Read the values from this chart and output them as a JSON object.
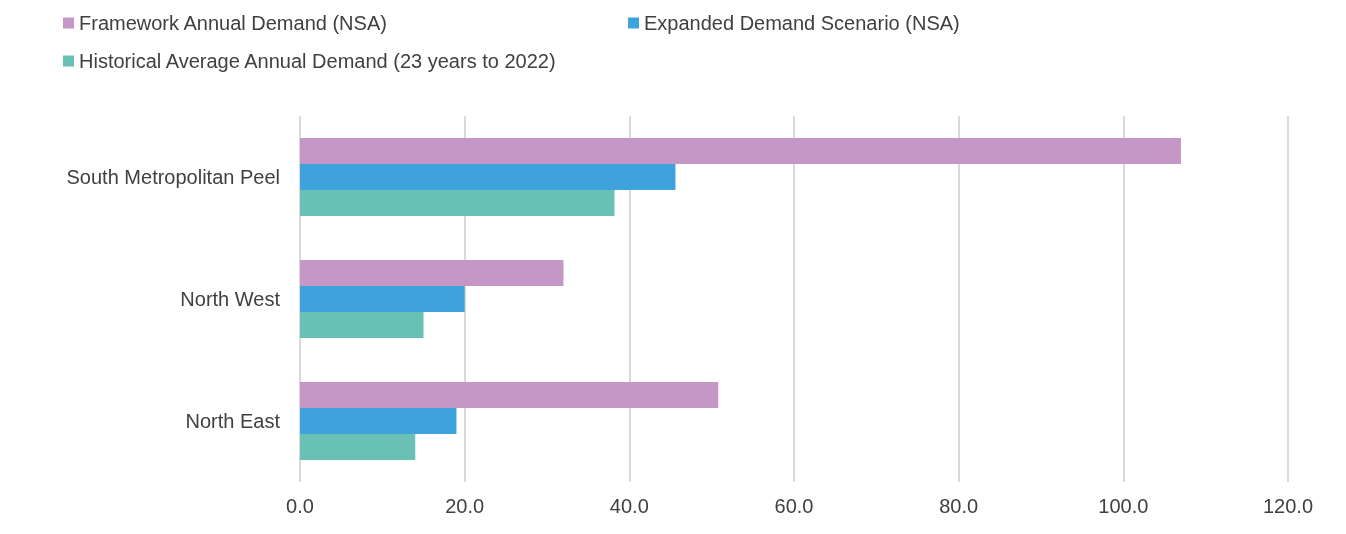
{
  "chart_data": {
    "type": "bar",
    "orientation": "horizontal",
    "categories": [
      "South Metropolitan Peel",
      "North West",
      "North East"
    ],
    "series": [
      {
        "name": "Framework Annual Demand (NSA)",
        "color": "#c597c7",
        "values": [
          107.0,
          32.0,
          50.8
        ]
      },
      {
        "name": "Expanded Demand Scenario (NSA)",
        "color": "#3ea3dc",
        "values": [
          45.6,
          20.0,
          19.0
        ]
      },
      {
        "name": "Historical Average Annual Demand (23 years to 2022)",
        "color": "#68c1b4",
        "values": [
          38.2,
          15.0,
          14.0
        ]
      }
    ],
    "xlim": [
      0,
      120
    ],
    "xticks": [
      {
        "value": 0,
        "label": "0.0"
      },
      {
        "value": 20,
        "label": "20.0"
      },
      {
        "value": 40,
        "label": "40.0"
      },
      {
        "value": 60,
        "label": "60.0"
      },
      {
        "value": 80,
        "label": "80.0"
      },
      {
        "value": 100,
        "label": "100.0"
      },
      {
        "value": 120,
        "label": "120.0"
      }
    ],
    "grid": "x",
    "legend": "top left"
  }
}
